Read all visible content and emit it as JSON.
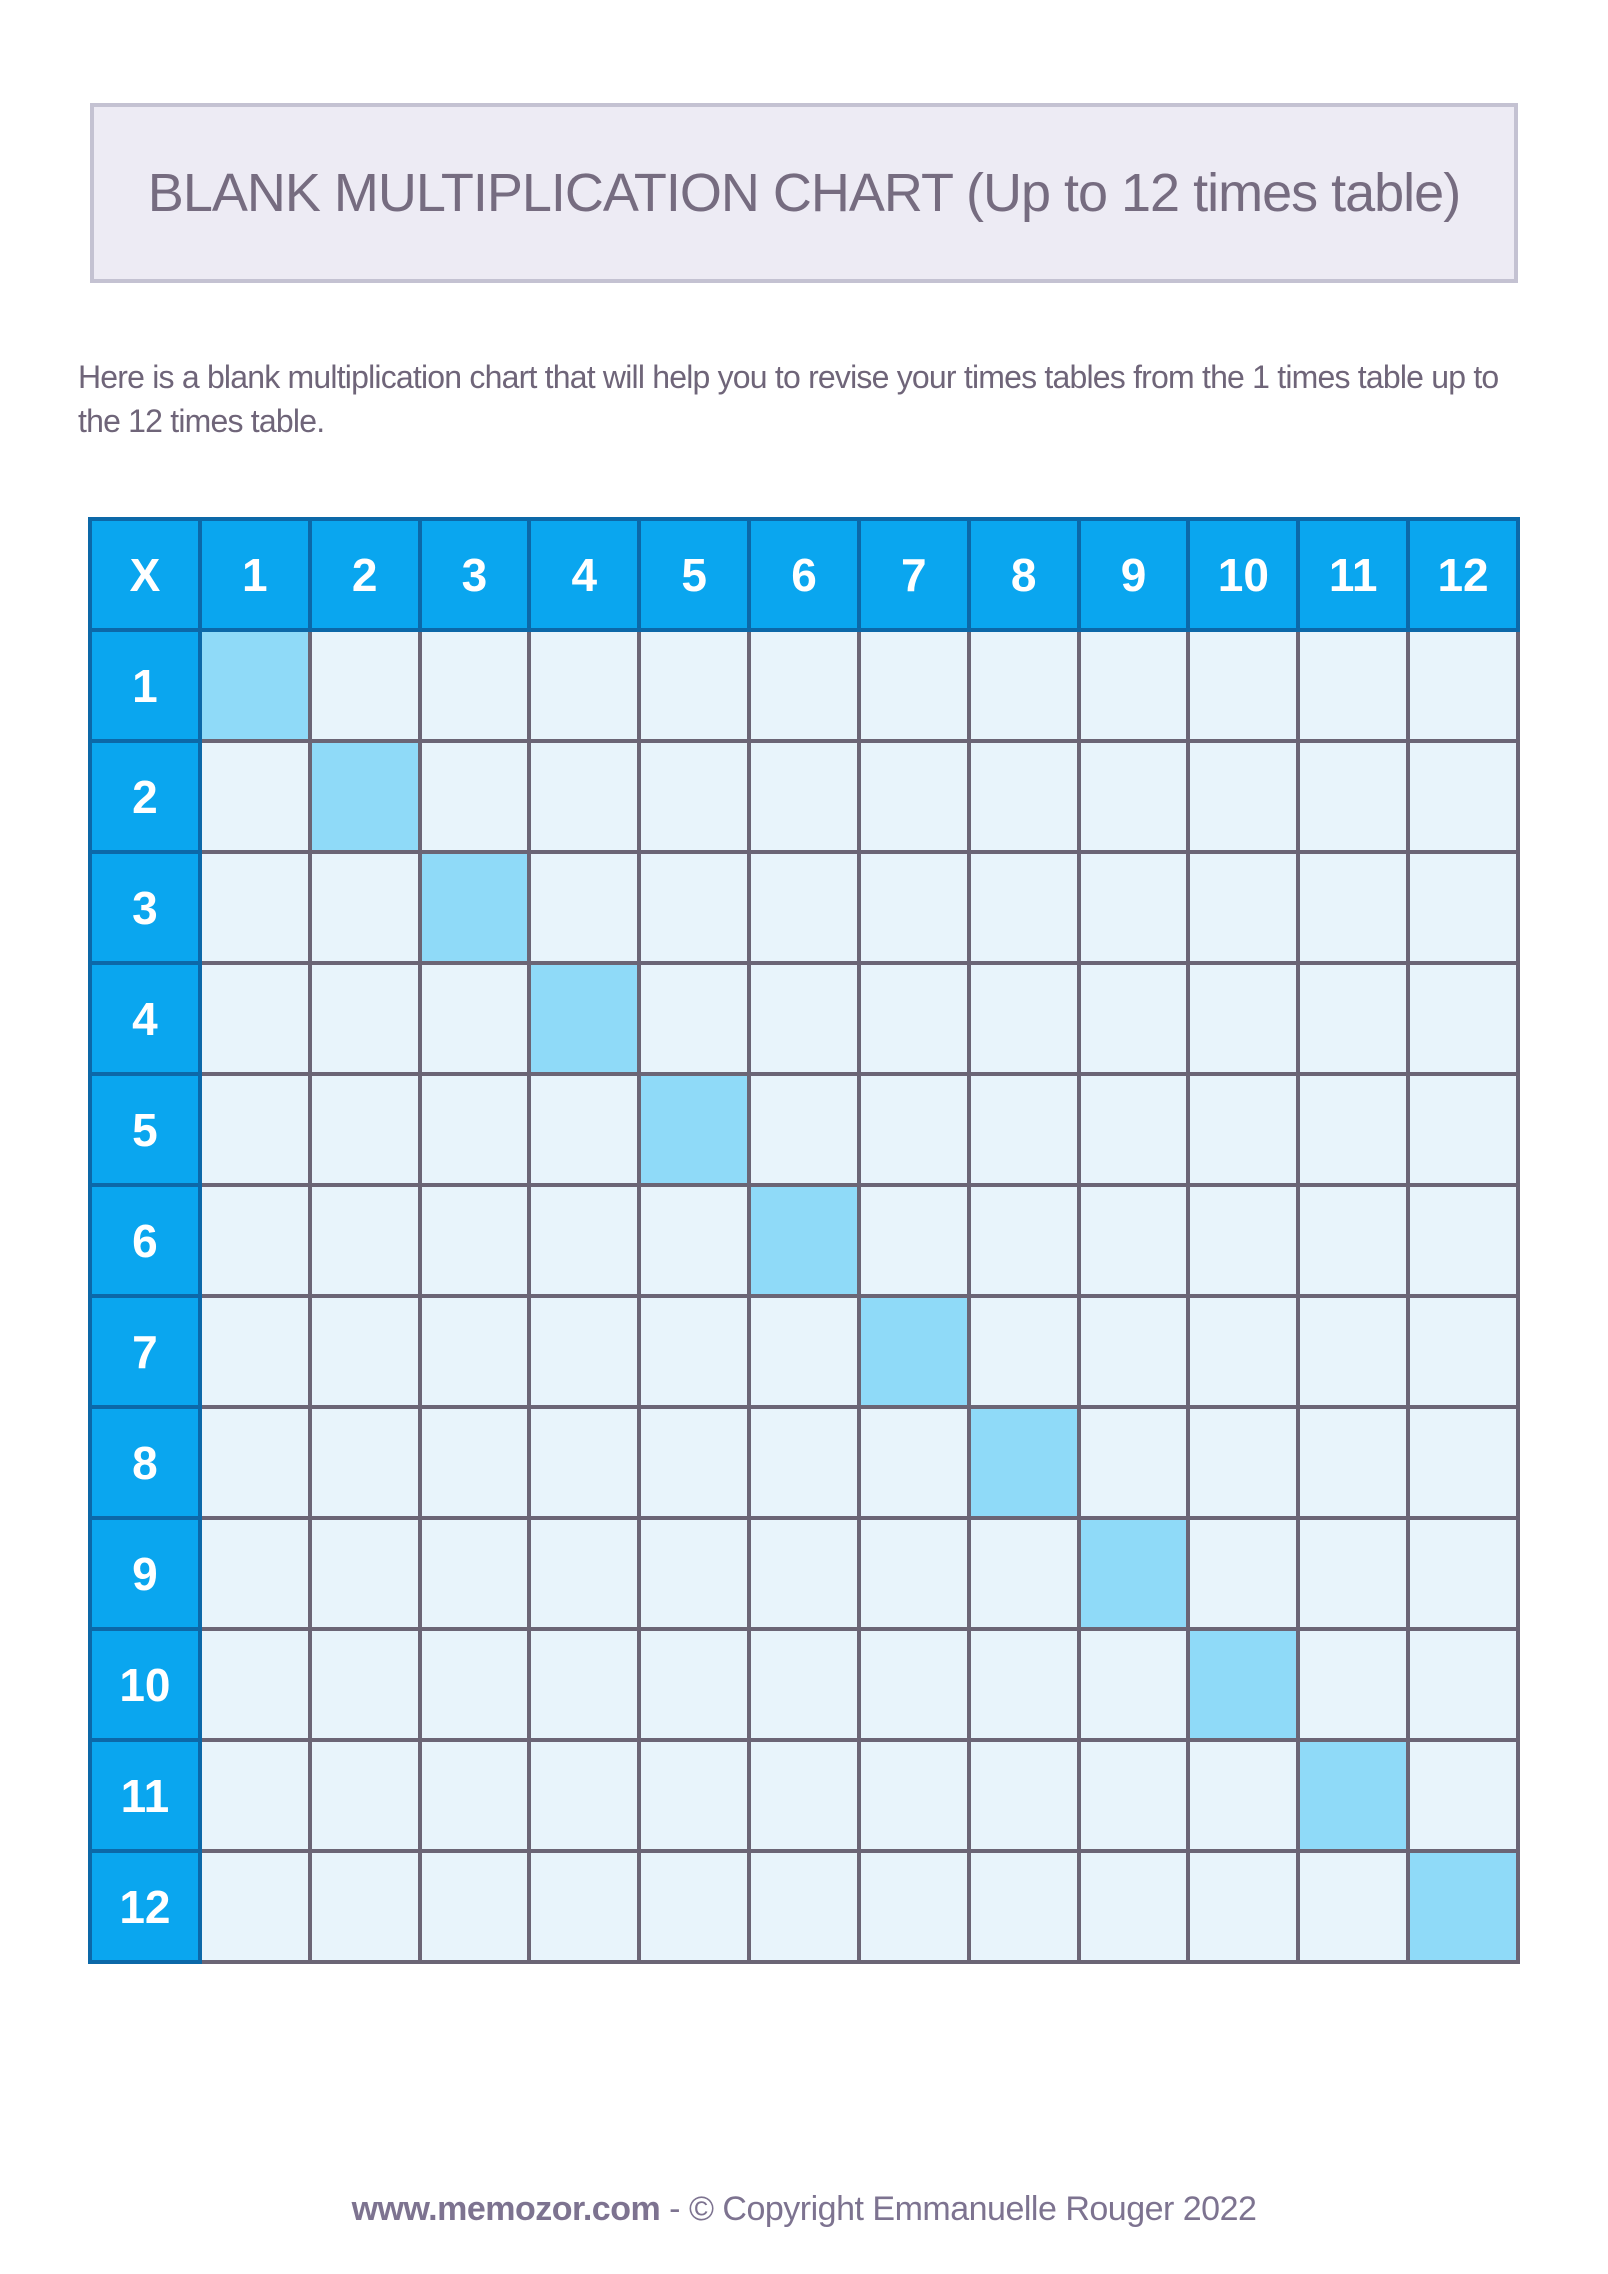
{
  "title_box": {
    "text": "BLANK MULTIPLICATION CHART (Up to 12 times table)",
    "background": "#edebf4",
    "border_color": "#c4c2d2",
    "text_color": "#766c80"
  },
  "intro": {
    "text": "Here is a blank multiplication chart that will help you to revise your times tables from the 1 times table up to the 12 times table.",
    "text_color": "#6f6579"
  },
  "grid": {
    "corner_label": "X",
    "col_headers": [
      "1",
      "2",
      "3",
      "4",
      "5",
      "6",
      "7",
      "8",
      "9",
      "10",
      "11",
      "12"
    ],
    "row_headers": [
      "1",
      "2",
      "3",
      "4",
      "5",
      "6",
      "7",
      "8",
      "9",
      "10",
      "11",
      "12"
    ],
    "body_cell_value": "",
    "highlight_rule": "diagonal cells where row number equals column number",
    "colors": {
      "header_bg": "#0aa6ef",
      "header_border": "#0c68a8",
      "header_text": "#ffffff",
      "cell_bg": "#e8f4fb",
      "cell_border": "#6b6575",
      "diagonal_bg": "#8fdaf8"
    }
  },
  "footer": {
    "url": "www.memozor.com",
    "separator": " - ",
    "copyright": "© Copyright Emmanuelle Rouger 2022",
    "text_color": "#7d7390"
  }
}
